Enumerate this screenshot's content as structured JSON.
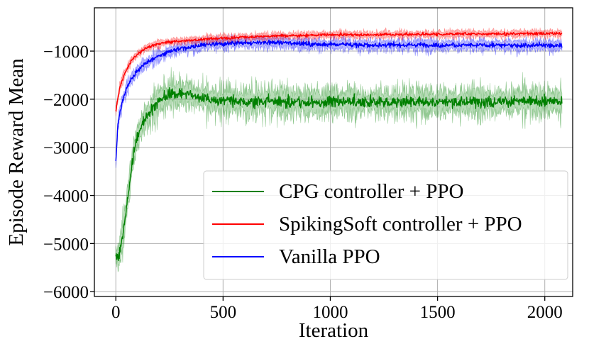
{
  "chart_data": {
    "type": "line",
    "xlabel": "Iteration",
    "ylabel": "Episode Reward Mean",
    "xlim": [
      -100,
      2130
    ],
    "ylim": [
      -6100,
      -100
    ],
    "xticks": [
      0,
      500,
      1000,
      1500,
      2000
    ],
    "yticks": [
      -6000,
      -5000,
      -4000,
      -3000,
      -2000,
      -1000
    ],
    "xtick_labels": [
      "0",
      "500",
      "1000",
      "1500",
      "2000"
    ],
    "ytick_labels": [
      "−6000",
      "−5000",
      "−4000",
      "−3000",
      "−2000",
      "−1000"
    ],
    "grid": true,
    "legend_position": "lower-right",
    "series": [
      {
        "name": "CPG controller + PPO",
        "color": "#008000",
        "noise": 170,
        "x": [
          0,
          10,
          20,
          30,
          40,
          50,
          60,
          70,
          80,
          90,
          100,
          120,
          140,
          160,
          180,
          200,
          230,
          260,
          300,
          350,
          400,
          500,
          600,
          700,
          800,
          900,
          1000,
          1100,
          1200,
          1300,
          1400,
          1500,
          1600,
          1700,
          1800,
          1900,
          2000,
          2080
        ],
        "y": [
          -5300,
          -5250,
          -5150,
          -4900,
          -4600,
          -4250,
          -3900,
          -3550,
          -3200,
          -2950,
          -2800,
          -2550,
          -2380,
          -2250,
          -2150,
          -2050,
          -1950,
          -1880,
          -1870,
          -1920,
          -1970,
          -2020,
          -2050,
          -2040,
          -2060,
          -2050,
          -2060,
          -2040,
          -2070,
          -2050,
          -2060,
          -2040,
          -2050,
          -2060,
          -2040,
          -2050,
          -2040,
          -2050
        ]
      },
      {
        "name": "SpikingSoft controller + PPO",
        "color": "#ff0000",
        "noise": 45,
        "x": [
          0,
          10,
          20,
          30,
          40,
          50,
          60,
          70,
          80,
          100,
          120,
          150,
          200,
          250,
          300,
          400,
          500,
          600,
          700,
          800,
          1000,
          1200,
          1400,
          1600,
          1800,
          2000,
          2080
        ],
        "y": [
          -2250,
          -1950,
          -1750,
          -1600,
          -1480,
          -1380,
          -1300,
          -1220,
          -1150,
          -1070,
          -1000,
          -920,
          -850,
          -810,
          -790,
          -760,
          -730,
          -710,
          -690,
          -680,
          -660,
          -660,
          -650,
          -640,
          -640,
          -630,
          -630
        ]
      },
      {
        "name": "Vanilla PPO",
        "color": "#0000ff",
        "noise": 70,
        "x": [
          0,
          10,
          20,
          30,
          40,
          50,
          60,
          80,
          100,
          120,
          150,
          200,
          250,
          300,
          400,
          500,
          600,
          700,
          800,
          1000,
          1200,
          1400,
          1600,
          1800,
          2000,
          2080
        ],
        "y": [
          -3300,
          -2500,
          -2250,
          -2050,
          -1900,
          -1780,
          -1680,
          -1530,
          -1420,
          -1330,
          -1220,
          -1100,
          -1010,
          -950,
          -880,
          -850,
          -830,
          -820,
          -830,
          -860,
          -880,
          -870,
          -880,
          -880,
          -880,
          -890
        ]
      }
    ]
  }
}
